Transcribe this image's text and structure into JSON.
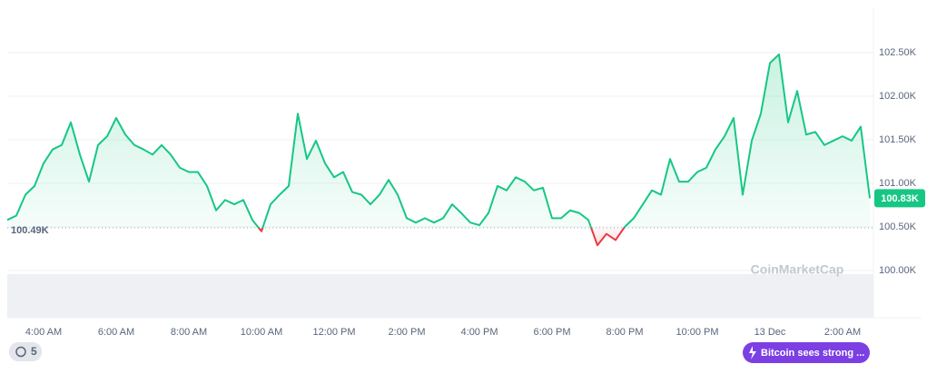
{
  "chart_data": {
    "type": "line",
    "color": "#16c784",
    "below_color": "#ea3943",
    "categories": [
      null,
      null,
      null,
      null,
      "4:00 AM",
      null,
      null,
      null,
      null,
      null,
      null,
      null,
      "6:00 AM",
      null,
      null,
      null,
      null,
      null,
      null,
      null,
      "8:00 AM",
      null,
      null,
      null,
      null,
      null,
      null,
      null,
      "10:00 AM",
      null,
      null,
      null,
      null,
      null,
      null,
      null,
      "12:00 PM",
      null,
      null,
      null,
      null,
      null,
      null,
      null,
      "2:00 PM",
      null,
      null,
      null,
      null,
      null,
      null,
      null,
      "4:00 PM",
      null,
      null,
      null,
      null,
      null,
      null,
      null,
      "6:00 PM",
      null,
      null,
      null,
      null,
      null,
      null,
      null,
      "8:00 PM",
      null,
      null,
      null,
      null,
      null,
      null,
      null,
      "10:00 PM",
      null,
      null,
      null,
      null,
      null,
      null,
      null,
      "13 Dec",
      null,
      null,
      null,
      null,
      null,
      null,
      null,
      "2:00 AM",
      null,
      null,
      null
    ],
    "values": [
      100580,
      100630,
      100870,
      100970,
      101230,
      101390,
      101440,
      101700,
      101330,
      101020,
      101440,
      101540,
      101750,
      101560,
      101440,
      101390,
      101330,
      101440,
      101330,
      101180,
      101130,
      101130,
      100970,
      100690,
      100810,
      100760,
      100810,
      100580,
      100450,
      100760,
      100870,
      100970,
      101800,
      101280,
      101490,
      101230,
      101070,
      101130,
      100900,
      100870,
      100760,
      100870,
      101040,
      100870,
      100600,
      100550,
      100600,
      100550,
      100600,
      100760,
      100660,
      100550,
      100520,
      100660,
      100970,
      100920,
      101070,
      101020,
      100920,
      100950,
      100600,
      100600,
      100690,
      100660,
      100580,
      100290,
      100420,
      100350,
      100500,
      100600,
      100760,
      100920,
      100870,
      101280,
      101020,
      101020,
      101130,
      101180,
      101390,
      101540,
      101750,
      100870,
      101490,
      101800,
      102380,
      102480,
      101700,
      102060,
      101560,
      101590,
      101440,
      101490,
      101540,
      101490,
      101650,
      100830
    ],
    "ylim": [
      100000,
      103000
    ],
    "yticks": [
      {
        "value": 100000,
        "label": "100.00K"
      },
      {
        "value": 100500,
        "label": "100.50K"
      },
      {
        "value": 101000,
        "label": "101.00K"
      },
      {
        "value": 101500,
        "label": "101.50K"
      },
      {
        "value": 102000,
        "label": "102.00K"
      },
      {
        "value": 102500,
        "label": "102.50K"
      }
    ],
    "grid": true,
    "baseline": {
      "value": 100490,
      "label": "100.49K"
    },
    "last_price": {
      "value": 100830,
      "label": "100.83K"
    }
  },
  "watermark": "CoinMarketCap",
  "history_badge": "5",
  "news_pill": "Bitcoin sees strong ..."
}
